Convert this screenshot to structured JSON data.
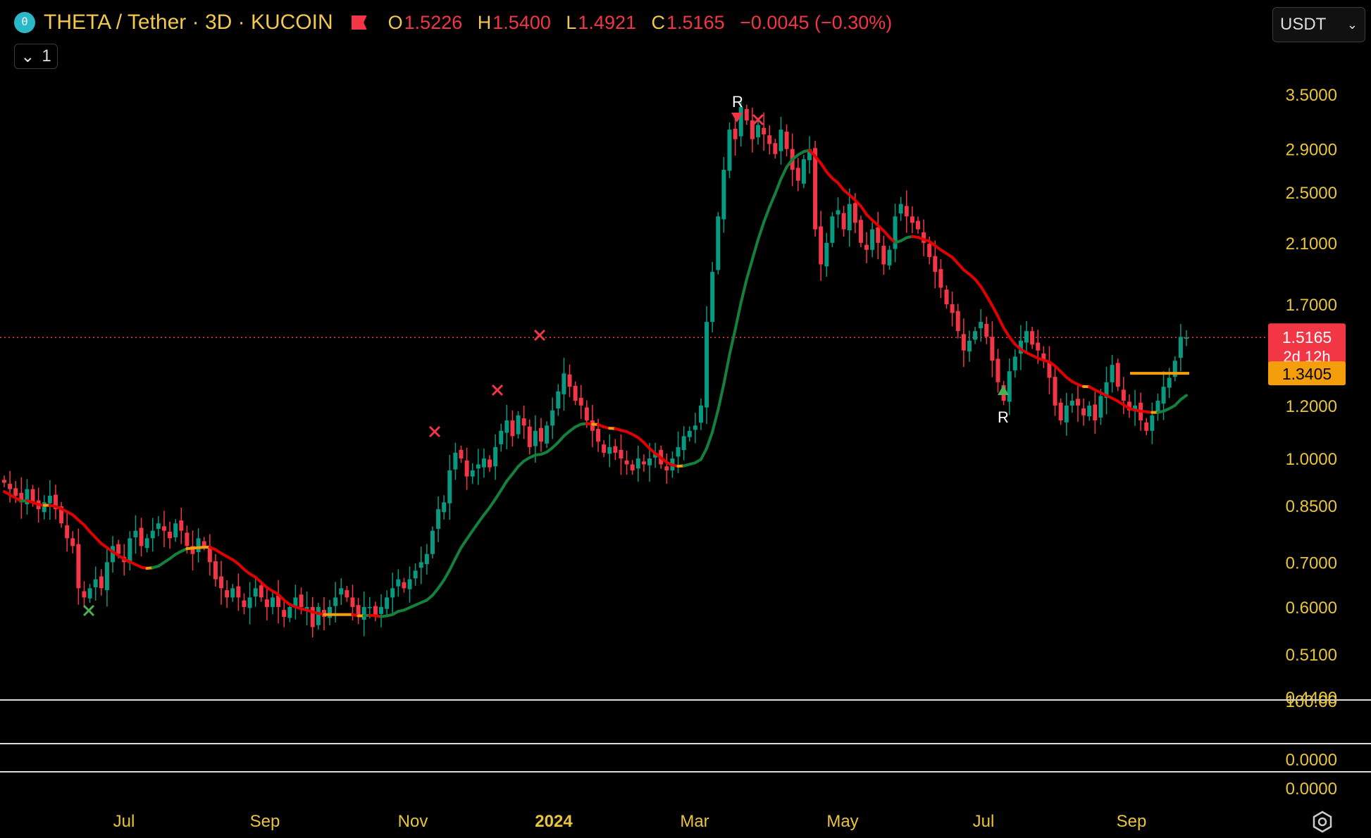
{
  "header": {
    "symbol": "THETA / Tether · 3D · KUCOIN",
    "open_label": "O",
    "open": "1.5226",
    "high_label": "H",
    "high": "1.5400",
    "low_label": "L",
    "low": "1.4921",
    "close_label": "C",
    "close": "1.5165",
    "change": "−0.0045 (−0.30%)",
    "collapse_count": "1",
    "currency": "USDT"
  },
  "chart_data": {
    "type": "candlestick",
    "title": "THETA / Tether · 3D · KUCOIN",
    "scale": "log",
    "ylim": [
      0.44,
      4.0
    ],
    "y_ticks": [
      "3.5000",
      "2.9000",
      "2.5000",
      "2.1000",
      "1.7000",
      "1.2000",
      "1.0000",
      "0.8500",
      "0.7000",
      "0.6000",
      "0.5100",
      "0.4400"
    ],
    "x_ticks": [
      "Jul",
      "Sep",
      "Nov",
      "2024",
      "Mar",
      "May",
      "Jul",
      "Sep"
    ],
    "price_label": "1.5165",
    "price_countdown": "2d 12h",
    "indicator_label": "1.3405",
    "sub_pane_labels": [
      "100.00",
      "0.0000",
      "0.0000"
    ],
    "candles_close": [
      0.92,
      0.9,
      0.88,
      0.86,
      0.9,
      0.86,
      0.84,
      0.86,
      0.88,
      0.84,
      0.8,
      0.76,
      0.74,
      0.64,
      0.62,
      0.64,
      0.66,
      0.64,
      0.7,
      0.74,
      0.72,
      0.7,
      0.76,
      0.78,
      0.74,
      0.76,
      0.78,
      0.8,
      0.78,
      0.76,
      0.8,
      0.78,
      0.74,
      0.72,
      0.76,
      0.74,
      0.7,
      0.66,
      0.64,
      0.62,
      0.64,
      0.62,
      0.6,
      0.62,
      0.64,
      0.62,
      0.6,
      0.62,
      0.6,
      0.58,
      0.6,
      0.62,
      0.6,
      0.6,
      0.56,
      0.6,
      0.58,
      0.6,
      0.62,
      0.64,
      0.62,
      0.6,
      0.58,
      0.6,
      0.6,
      0.58,
      0.6,
      0.62,
      0.64,
      0.66,
      0.64,
      0.66,
      0.68,
      0.7,
      0.72,
      0.78,
      0.84,
      0.86,
      0.96,
      1.02,
      1.0,
      0.94,
      0.96,
      0.98,
      1.0,
      0.97,
      1.04,
      1.1,
      1.14,
      1.08,
      1.16,
      1.12,
      1.04,
      1.1,
      1.06,
      1.12,
      1.18,
      1.26,
      1.34,
      1.28,
      1.22,
      1.2,
      1.14,
      1.1,
      1.06,
      1.02,
      1.04,
      1.02,
      1.0,
      0.98,
      0.96,
      1.0,
      0.98,
      1.0,
      1.02,
      0.98,
      0.96,
      1.0,
      1.04,
      1.08,
      1.1,
      1.12,
      1.2,
      1.6,
      1.9,
      2.3,
      2.7,
      3.1,
      3.0,
      3.35,
      3.2,
      3.0,
      3.15,
      3.05,
      2.95,
      2.85,
      3.1,
      2.9,
      2.7,
      2.6,
      2.8,
      2.9,
      2.2,
      1.95,
      2.1,
      2.3,
      2.35,
      2.2,
      2.4,
      2.25,
      2.1,
      2.05,
      2.2,
      2.1,
      1.95,
      2.05,
      2.3,
      2.4,
      2.3,
      2.25,
      2.2,
      2.1,
      2.0,
      1.9,
      1.8,
      1.7,
      1.65,
      1.55,
      1.45,
      1.5,
      1.55,
      1.6,
      1.52,
      1.4,
      1.3,
      1.22,
      1.35,
      1.42,
      1.5,
      1.55,
      1.48,
      1.45,
      1.4,
      1.32,
      1.2,
      1.14,
      1.2,
      1.22,
      1.2,
      1.16,
      1.2,
      1.14,
      1.24,
      1.3,
      1.38,
      1.28,
      1.22,
      1.18,
      1.2,
      1.14,
      1.1,
      1.16,
      1.22,
      1.28,
      1.32,
      1.4,
      1.52,
      1.5165
    ]
  }
}
